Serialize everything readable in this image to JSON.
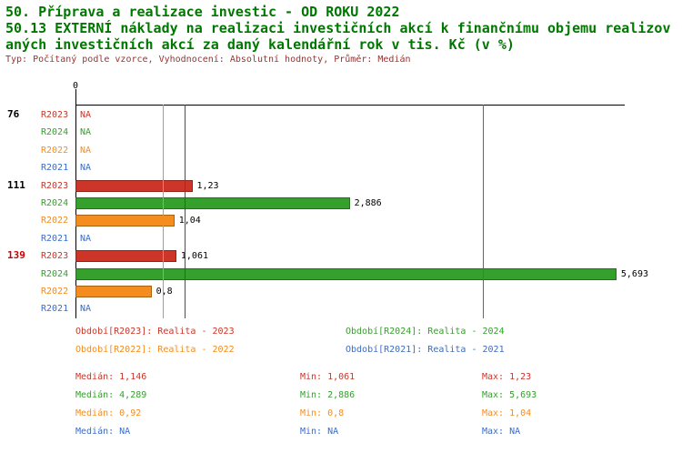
{
  "header": {
    "title1": "50. Příprava a realizace investic - OD ROKU 2022",
    "title2": "50.13 EXTERNÍ náklady na realizaci investičních akcí k finančnímu objemu realizovaných investičních akcí za daný kalendářní rok v tis. Kč (v %)",
    "subtitle": "Typ: Počítaný podle vzorce, Vyhodnocení: Absolutní hodnoty, Průměr: Medián",
    "title_color": "#007700",
    "subtitle_color": "#993333"
  },
  "chart_data": {
    "type": "bar",
    "orientation": "horizontal",
    "unit": "%",
    "x_axis": {
      "zero_label": "0",
      "min": 0,
      "max": 5.78,
      "gridlines": false
    },
    "series_colors": {
      "R2023": "#cc3528",
      "R2024": "#35a02c",
      "R2022": "#f58c1e",
      "R2021": "#3a6cc8"
    },
    "groups": [
      {
        "label": "76",
        "label_color": "#000000",
        "rows": [
          {
            "series": "R2023",
            "value": null,
            "label": "NA"
          },
          {
            "series": "R2024",
            "value": null,
            "label": "NA"
          },
          {
            "series": "R2022",
            "value": null,
            "label": "NA"
          },
          {
            "series": "R2021",
            "value": null,
            "label": "NA"
          }
        ]
      },
      {
        "label": "111",
        "label_color": "#000000",
        "rows": [
          {
            "series": "R2023",
            "value": 1.23,
            "label": "1,23"
          },
          {
            "series": "R2024",
            "value": 2.886,
            "label": "2,886"
          },
          {
            "series": "R2022",
            "value": 1.04,
            "label": "1,04"
          },
          {
            "series": "R2021",
            "value": null,
            "label": "NA"
          }
        ]
      },
      {
        "label": "139",
        "label_color": "#cc0000",
        "rows": [
          {
            "series": "R2023",
            "value": 1.061,
            "label": "1,061"
          },
          {
            "series": "R2024",
            "value": 5.693,
            "label": "5,693"
          },
          {
            "series": "R2022",
            "value": 0.8,
            "label": "0,8"
          },
          {
            "series": "R2021",
            "value": null,
            "label": "NA"
          }
        ]
      }
    ],
    "reference_lines": [
      {
        "series": "R2023",
        "label": "Medián",
        "value": 1.146,
        "color": "#b22222"
      },
      {
        "series": "R2024",
        "label": "Medián",
        "value": 4.289,
        "color": "#2e8b2e"
      },
      {
        "series": "R2022",
        "label": "Medián",
        "value": 0.92,
        "color": "#f58c1e"
      }
    ]
  },
  "legend": [
    {
      "text": "Období[R2023]: Realita - 2023",
      "color": "#cc3528"
    },
    {
      "text": "Období[R2024]: Realita - 2024",
      "color": "#35a02c"
    },
    {
      "text": "Období[R2022]: Realita - 2022",
      "color": "#f58c1e"
    },
    {
      "text": "Období[R2021]: Realita - 2021",
      "color": "#3a6cc8"
    }
  ],
  "stats": [
    {
      "series": "R2023",
      "color": "#cc3528",
      "median": "Medián: 1,146",
      "min": "Min: 1,061",
      "max": "Max: 1,23"
    },
    {
      "series": "R2024",
      "color": "#35a02c",
      "median": "Medián: 4,289",
      "min": "Min: 2,886",
      "max": "Max: 5,693"
    },
    {
      "series": "R2022",
      "color": "#f58c1e",
      "median": "Medián: 0,92",
      "min": "Min: 0,8",
      "max": "Max: 1,04"
    },
    {
      "series": "R2021",
      "color": "#3a6cc8",
      "median": "Medián: NA",
      "min": "Min: NA",
      "max": "Max: NA"
    }
  ]
}
